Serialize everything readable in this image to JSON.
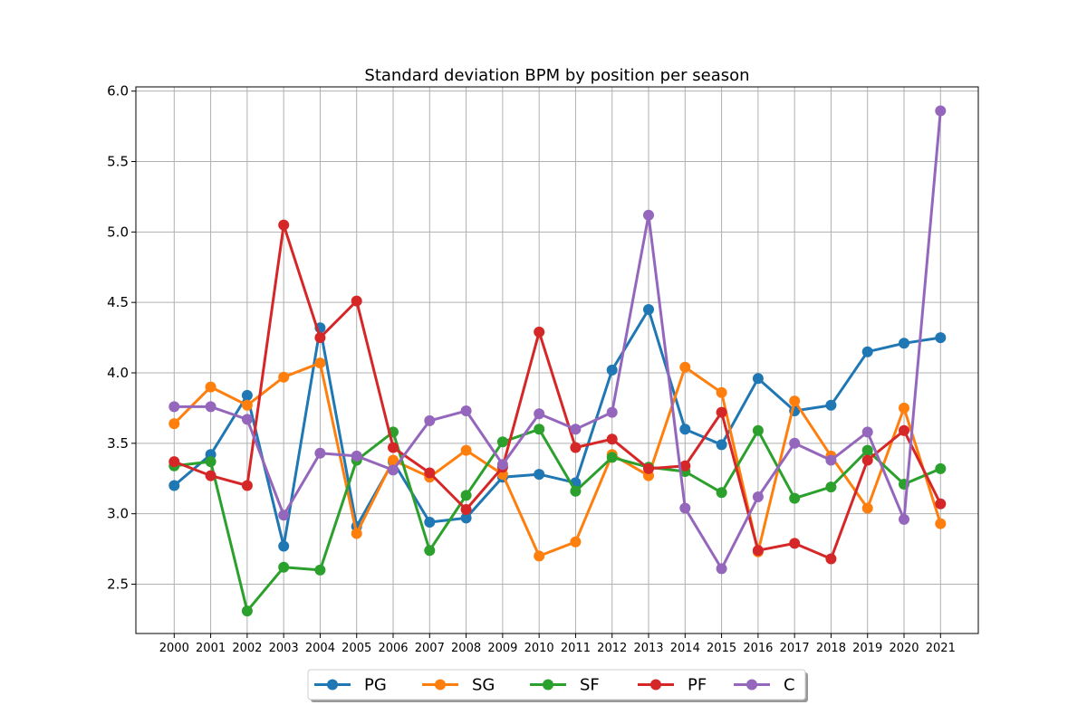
{
  "chart_data": {
    "type": "line",
    "title": "Standard deviation BPM by position per season",
    "xlabel": "",
    "ylabel": "",
    "categories": [
      "2000",
      "2001",
      "2002",
      "2003",
      "2004",
      "2005",
      "2006",
      "2007",
      "2008",
      "2009",
      "2010",
      "2011",
      "2012",
      "2013",
      "2014",
      "2015",
      "2016",
      "2017",
      "2018",
      "2019",
      "2020",
      "2021"
    ],
    "ylim": [
      2.15,
      6.03
    ],
    "yticks": [
      "2.5",
      "3.0",
      "3.5",
      "4.0",
      "4.5",
      "5.0",
      "5.5",
      "6.0"
    ],
    "grid": true,
    "legend_position": "bottom-center",
    "series": [
      {
        "name": "PG",
        "color": "#1f77b4",
        "values": [
          3.2,
          3.42,
          3.84,
          2.77,
          4.32,
          2.91,
          3.37,
          2.94,
          2.97,
          3.26,
          3.28,
          3.22,
          4.02,
          4.45,
          3.6,
          3.49,
          3.96,
          3.73,
          3.77,
          4.15,
          4.21,
          4.25
        ]
      },
      {
        "name": "SG",
        "color": "#ff7f0e",
        "values": [
          3.64,
          3.9,
          3.77,
          3.97,
          4.07,
          2.86,
          3.38,
          3.26,
          3.45,
          3.28,
          2.7,
          2.8,
          3.42,
          3.27,
          4.04,
          3.86,
          2.73,
          3.8,
          3.41,
          3.04,
          3.75,
          2.93
        ]
      },
      {
        "name": "SF",
        "color": "#2ca02c",
        "values": [
          3.34,
          3.37,
          2.31,
          2.62,
          2.6,
          3.38,
          3.58,
          2.74,
          3.13,
          3.51,
          3.6,
          3.16,
          3.4,
          3.33,
          3.3,
          3.15,
          3.59,
          3.11,
          3.19,
          3.45,
          3.21,
          3.32
        ]
      },
      {
        "name": "PF",
        "color": "#d62728",
        "values": [
          3.37,
          3.27,
          3.2,
          5.05,
          4.25,
          4.51,
          3.47,
          3.29,
          3.03,
          3.33,
          4.29,
          3.47,
          3.53,
          3.32,
          3.34,
          3.72,
          2.74,
          2.79,
          2.68,
          3.38,
          3.59,
          3.07
        ]
      },
      {
        "name": "C",
        "color": "#9467bd",
        "values": [
          3.76,
          3.76,
          3.67,
          2.99,
          3.43,
          3.41,
          3.31,
          3.66,
          3.73,
          3.35,
          3.71,
          3.6,
          3.72,
          5.12,
          3.04,
          2.61,
          3.12,
          3.5,
          3.38,
          3.58,
          2.96,
          5.86
        ]
      }
    ]
  }
}
